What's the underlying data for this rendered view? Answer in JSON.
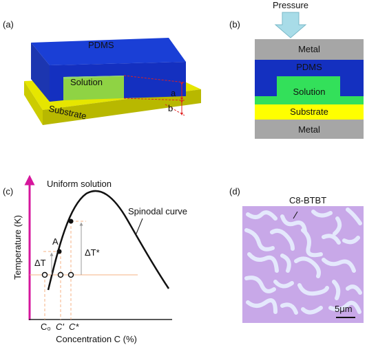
{
  "panel_a": {
    "label": "(a)",
    "pdms": "PDMS",
    "solution": "Solution",
    "substrate": "Substrate",
    "dim_a": "a",
    "dim_b": "b"
  },
  "panel_b": {
    "label": "(b)",
    "pressure": "Pressure",
    "metal_top": "Metal",
    "pdms": "PDMS",
    "solution": "Solution",
    "substrate": "Substrate",
    "metal_bottom": "Metal"
  },
  "panel_c": {
    "label": "(c)",
    "region": "Uniform solution",
    "curve": "Spinodal curve",
    "point": "A",
    "delta_t": "ΔT",
    "delta_t_star": "ΔT*",
    "y_axis": "Temperature (K)",
    "x_axis": "Concentration C (%)",
    "c0": "C₀",
    "c_prime": "C'",
    "c_star": "C*"
  },
  "panel_d": {
    "label": "(d)",
    "annotation": "C8-BTBT",
    "scale": "5μm"
  }
}
